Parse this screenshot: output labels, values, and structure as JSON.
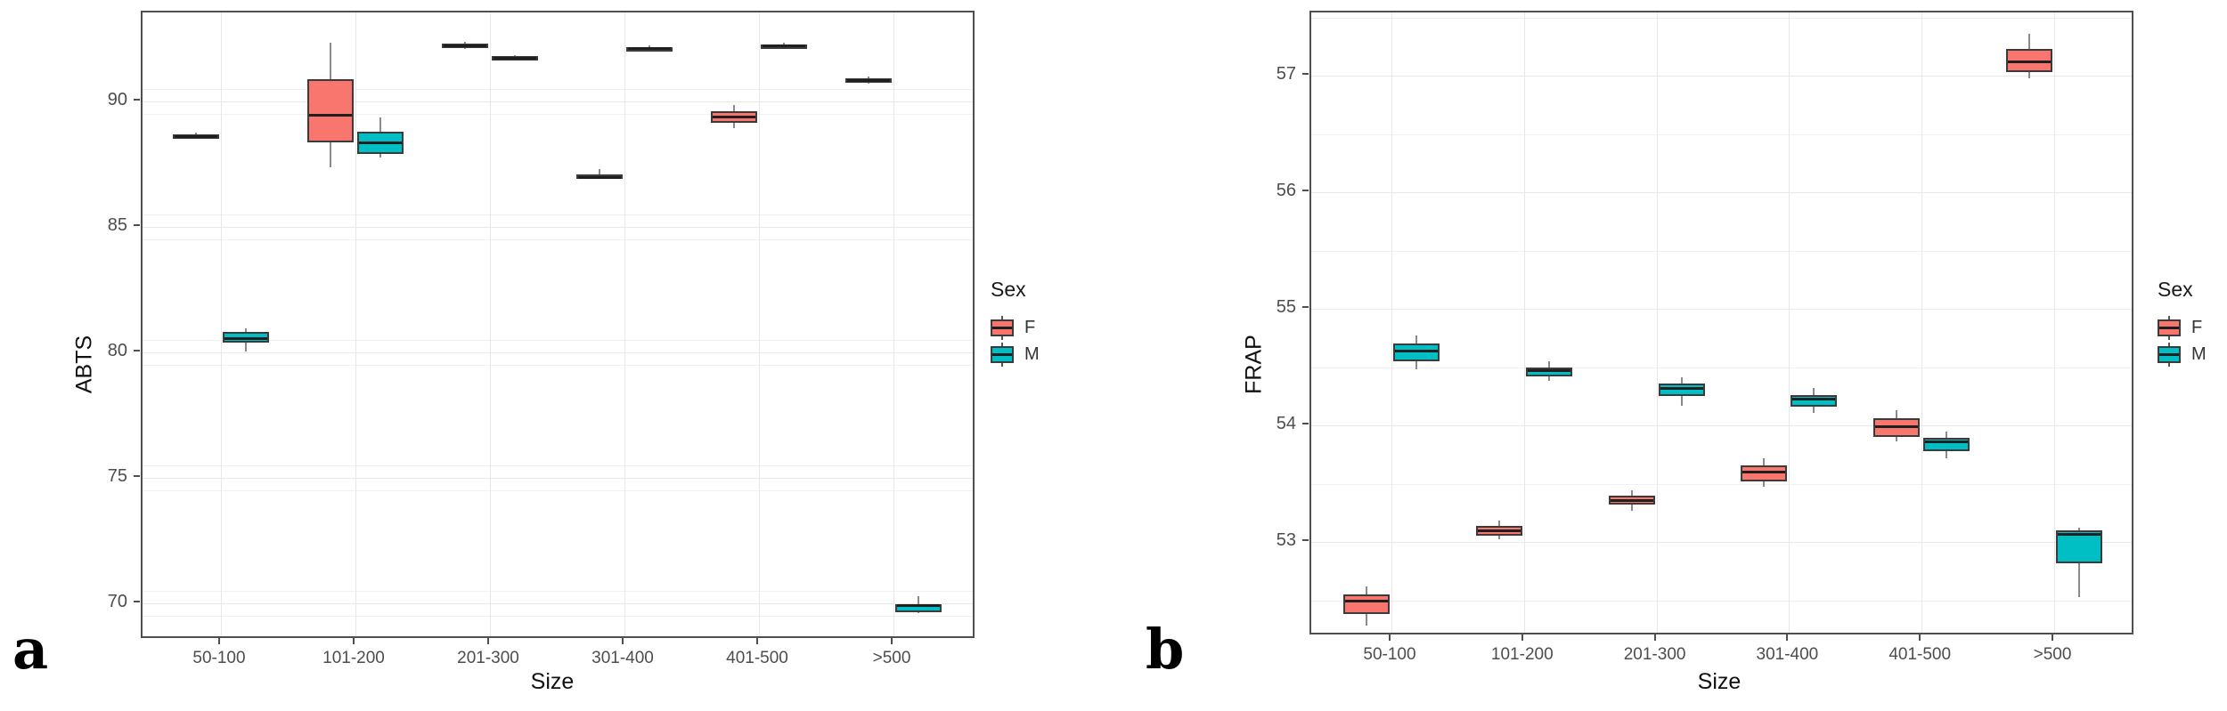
{
  "figure": {
    "background": "#ffffff"
  },
  "panel_labels": [
    {
      "text": "a"
    },
    {
      "text": "b"
    }
  ],
  "legend": {
    "title": "Sex",
    "entries": [
      {
        "label": "F",
        "color": "#F8766D"
      },
      {
        "label": "M",
        "color": "#00BFC4"
      }
    ]
  },
  "colors": {
    "female_fill": "#F8766D",
    "male_fill": "#00BFC4",
    "box_border": "#3b3b3b",
    "median": "#1f1f1f",
    "whisker": "#8a8a8a",
    "grid_major": "#e8e8e8",
    "grid_minor": "#f1f1f1",
    "panel_border": "#4f4f4f",
    "tick_text": "#4d4d4d",
    "axis_title_text": "#111111"
  },
  "chart_data": [
    {
      "type": "boxplot",
      "id": "a",
      "title": "",
      "xlabel": "Size",
      "ylabel": "ABTS",
      "categories": [
        "50-100",
        "101-200",
        "201-300",
        "301-400",
        "401-500",
        ">500"
      ],
      "yticks": [
        70,
        75,
        80,
        85,
        90
      ],
      "ylim": [
        68.55,
        93.55
      ],
      "grid": true,
      "legend_position": "right",
      "series": [
        {
          "name": "F",
          "boxes": [
            {
              "lo": 88.5,
              "q1": 88.55,
              "med": 88.62,
              "q3": 88.7,
              "hi": 88.76
            },
            {
              "lo": 87.37,
              "q1": 88.37,
              "med": 89.46,
              "q3": 90.9,
              "hi": 92.33
            },
            {
              "lo": 92.1,
              "q1": 92.15,
              "med": 92.23,
              "q3": 92.3,
              "hi": 92.38
            },
            {
              "lo": 86.9,
              "q1": 86.95,
              "med": 87.0,
              "q3": 87.08,
              "hi": 87.3
            },
            {
              "lo": 88.95,
              "q1": 89.15,
              "med": 89.38,
              "q3": 89.6,
              "hi": 89.85
            },
            {
              "lo": 90.7,
              "q1": 90.78,
              "med": 90.85,
              "q3": 90.92,
              "hi": 91.0
            }
          ]
        },
        {
          "name": "M",
          "boxes": [
            {
              "lo": 80.05,
              "q1": 80.38,
              "med": 80.55,
              "q3": 80.8,
              "hi": 80.95
            },
            {
              "lo": 87.75,
              "q1": 87.92,
              "med": 88.38,
              "q3": 88.8,
              "hi": 89.35
            },
            {
              "lo": 91.64,
              "q1": 91.68,
              "med": 91.74,
              "q3": 91.8,
              "hi": 91.86
            },
            {
              "lo": 92.0,
              "q1": 92.05,
              "med": 92.12,
              "q3": 92.18,
              "hi": 92.25
            },
            {
              "lo": 92.12,
              "q1": 92.16,
              "med": 92.22,
              "q3": 92.28,
              "hi": 92.34
            },
            {
              "lo": 69.6,
              "q1": 69.65,
              "med": 69.92,
              "q3": 69.97,
              "hi": 70.3
            }
          ]
        }
      ]
    },
    {
      "type": "boxplot",
      "id": "b",
      "title": "",
      "xlabel": "Size",
      "ylabel": "FRAP",
      "categories": [
        "50-100",
        "101-200",
        "201-300",
        "301-400",
        "401-500",
        ">500"
      ],
      "yticks": [
        53,
        54,
        55,
        56,
        57
      ],
      "ylim": [
        52.19,
        57.54
      ],
      "grid": true,
      "legend_position": "right",
      "series": [
        {
          "name": "F",
          "boxes": [
            {
              "lo": 52.28,
              "q1": 52.38,
              "med": 52.5,
              "q3": 52.55,
              "hi": 52.62
            },
            {
              "lo": 53.02,
              "q1": 53.05,
              "med": 53.1,
              "q3": 53.14,
              "hi": 53.18
            },
            {
              "lo": 53.27,
              "q1": 53.32,
              "med": 53.36,
              "q3": 53.4,
              "hi": 53.44
            },
            {
              "lo": 53.47,
              "q1": 53.52,
              "med": 53.6,
              "q3": 53.66,
              "hi": 53.72
            },
            {
              "lo": 53.86,
              "q1": 53.9,
              "med": 53.99,
              "q3": 54.06,
              "hi": 54.13
            },
            {
              "lo": 56.98,
              "q1": 57.03,
              "med": 57.12,
              "q3": 57.23,
              "hi": 57.36
            }
          ]
        },
        {
          "name": "M",
          "boxes": [
            {
              "lo": 54.48,
              "q1": 54.55,
              "med": 54.64,
              "q3": 54.7,
              "hi": 54.77
            },
            {
              "lo": 54.38,
              "q1": 54.42,
              "med": 54.47,
              "q3": 54.5,
              "hi": 54.55
            },
            {
              "lo": 54.17,
              "q1": 54.25,
              "med": 54.32,
              "q3": 54.36,
              "hi": 54.41
            },
            {
              "lo": 54.11,
              "q1": 54.16,
              "med": 54.23,
              "q3": 54.26,
              "hi": 54.32
            },
            {
              "lo": 53.72,
              "q1": 53.78,
              "med": 53.86,
              "q3": 53.89,
              "hi": 53.95
            },
            {
              "lo": 52.53,
              "q1": 52.82,
              "med": 53.07,
              "q3": 53.1,
              "hi": 53.12
            }
          ]
        }
      ]
    }
  ]
}
